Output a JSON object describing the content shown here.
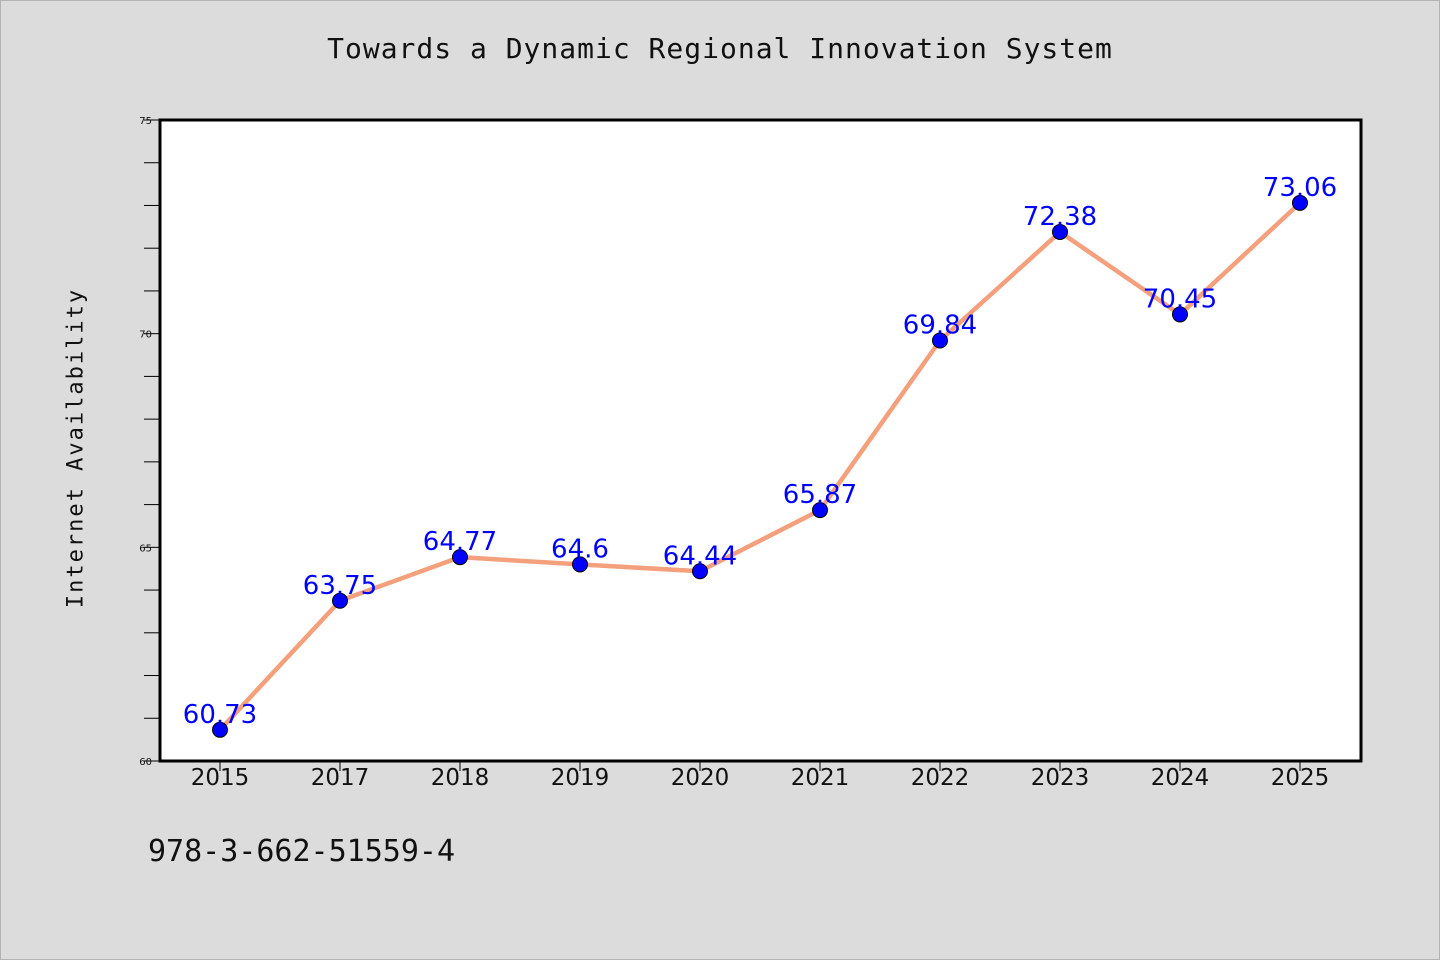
{
  "chart_data": {
    "type": "line",
    "title": "Towards a Dynamic Regional Innovation System",
    "xlabel": "",
    "ylabel": "Internet Availability",
    "categories": [
      "2015",
      "2017",
      "2018",
      "2019",
      "2020",
      "2021",
      "2022",
      "2023",
      "2024",
      "2025"
    ],
    "series": [
      {
        "values": [
          60.73,
          63.75,
          64.77,
          64.6,
          64.44,
          65.87,
          69.84,
          72.38,
          70.45,
          73.06
        ],
        "line_color": "#f4a07c",
        "marker_color": "#0000ff"
      }
    ],
    "data_labels": [
      "60.73",
      "63.75",
      "64.77",
      "64.6",
      "64.44",
      "65.87",
      "69.84",
      "72.38",
      "70.45",
      "73.06"
    ],
    "ylim": [
      60,
      75
    ],
    "yticks": [
      60,
      65,
      70,
      75
    ],
    "grid": false,
    "legend": "none"
  },
  "footer": {
    "code": "978-3-662-51559-4"
  },
  "colors": {
    "background": "#dcdcdc",
    "plot_background": "#ffffff",
    "line": "#f4a07c",
    "marker": "#0000ff",
    "data_label": "#0000ff"
  }
}
